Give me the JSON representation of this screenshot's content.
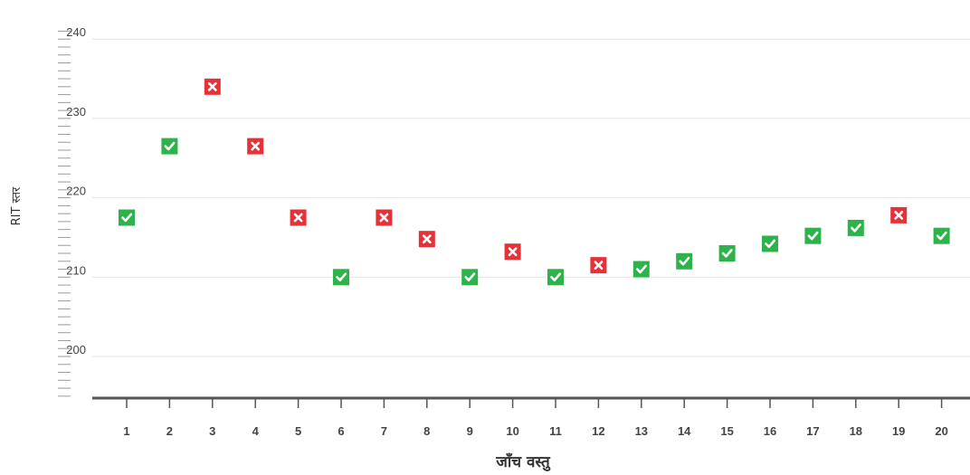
{
  "chart_data": {
    "type": "scatter",
    "title": "",
    "xlabel": "जाँच वस्तु",
    "ylabel": "RIT स्तर",
    "ylim": [
      195,
      241
    ],
    "y_ticks": [
      "200",
      "210",
      "220",
      "230",
      "240"
    ],
    "categories": [
      "1",
      "2",
      "3",
      "4",
      "5",
      "6",
      "7",
      "8",
      "9",
      "10",
      "11",
      "12",
      "13",
      "14",
      "15",
      "16",
      "17",
      "18",
      "19",
      "20"
    ],
    "values": [
      217.5,
      226.5,
      234,
      226.5,
      217.5,
      210,
      217.5,
      214.8,
      210,
      213.2,
      210,
      211.5,
      211,
      212,
      213,
      214.2,
      215.2,
      216.2,
      217.8,
      215.2
    ],
    "correct": [
      true,
      true,
      false,
      false,
      false,
      true,
      false,
      false,
      true,
      false,
      true,
      false,
      true,
      true,
      true,
      true,
      true,
      true,
      false,
      true
    ],
    "grid": true,
    "colors": {
      "correct": "#2db34a",
      "incorrect": "#e53238",
      "grid": "#e3e3e3",
      "axis": "#555555"
    },
    "icons": {
      "correct": "check-icon",
      "incorrect": "cross-icon"
    }
  }
}
